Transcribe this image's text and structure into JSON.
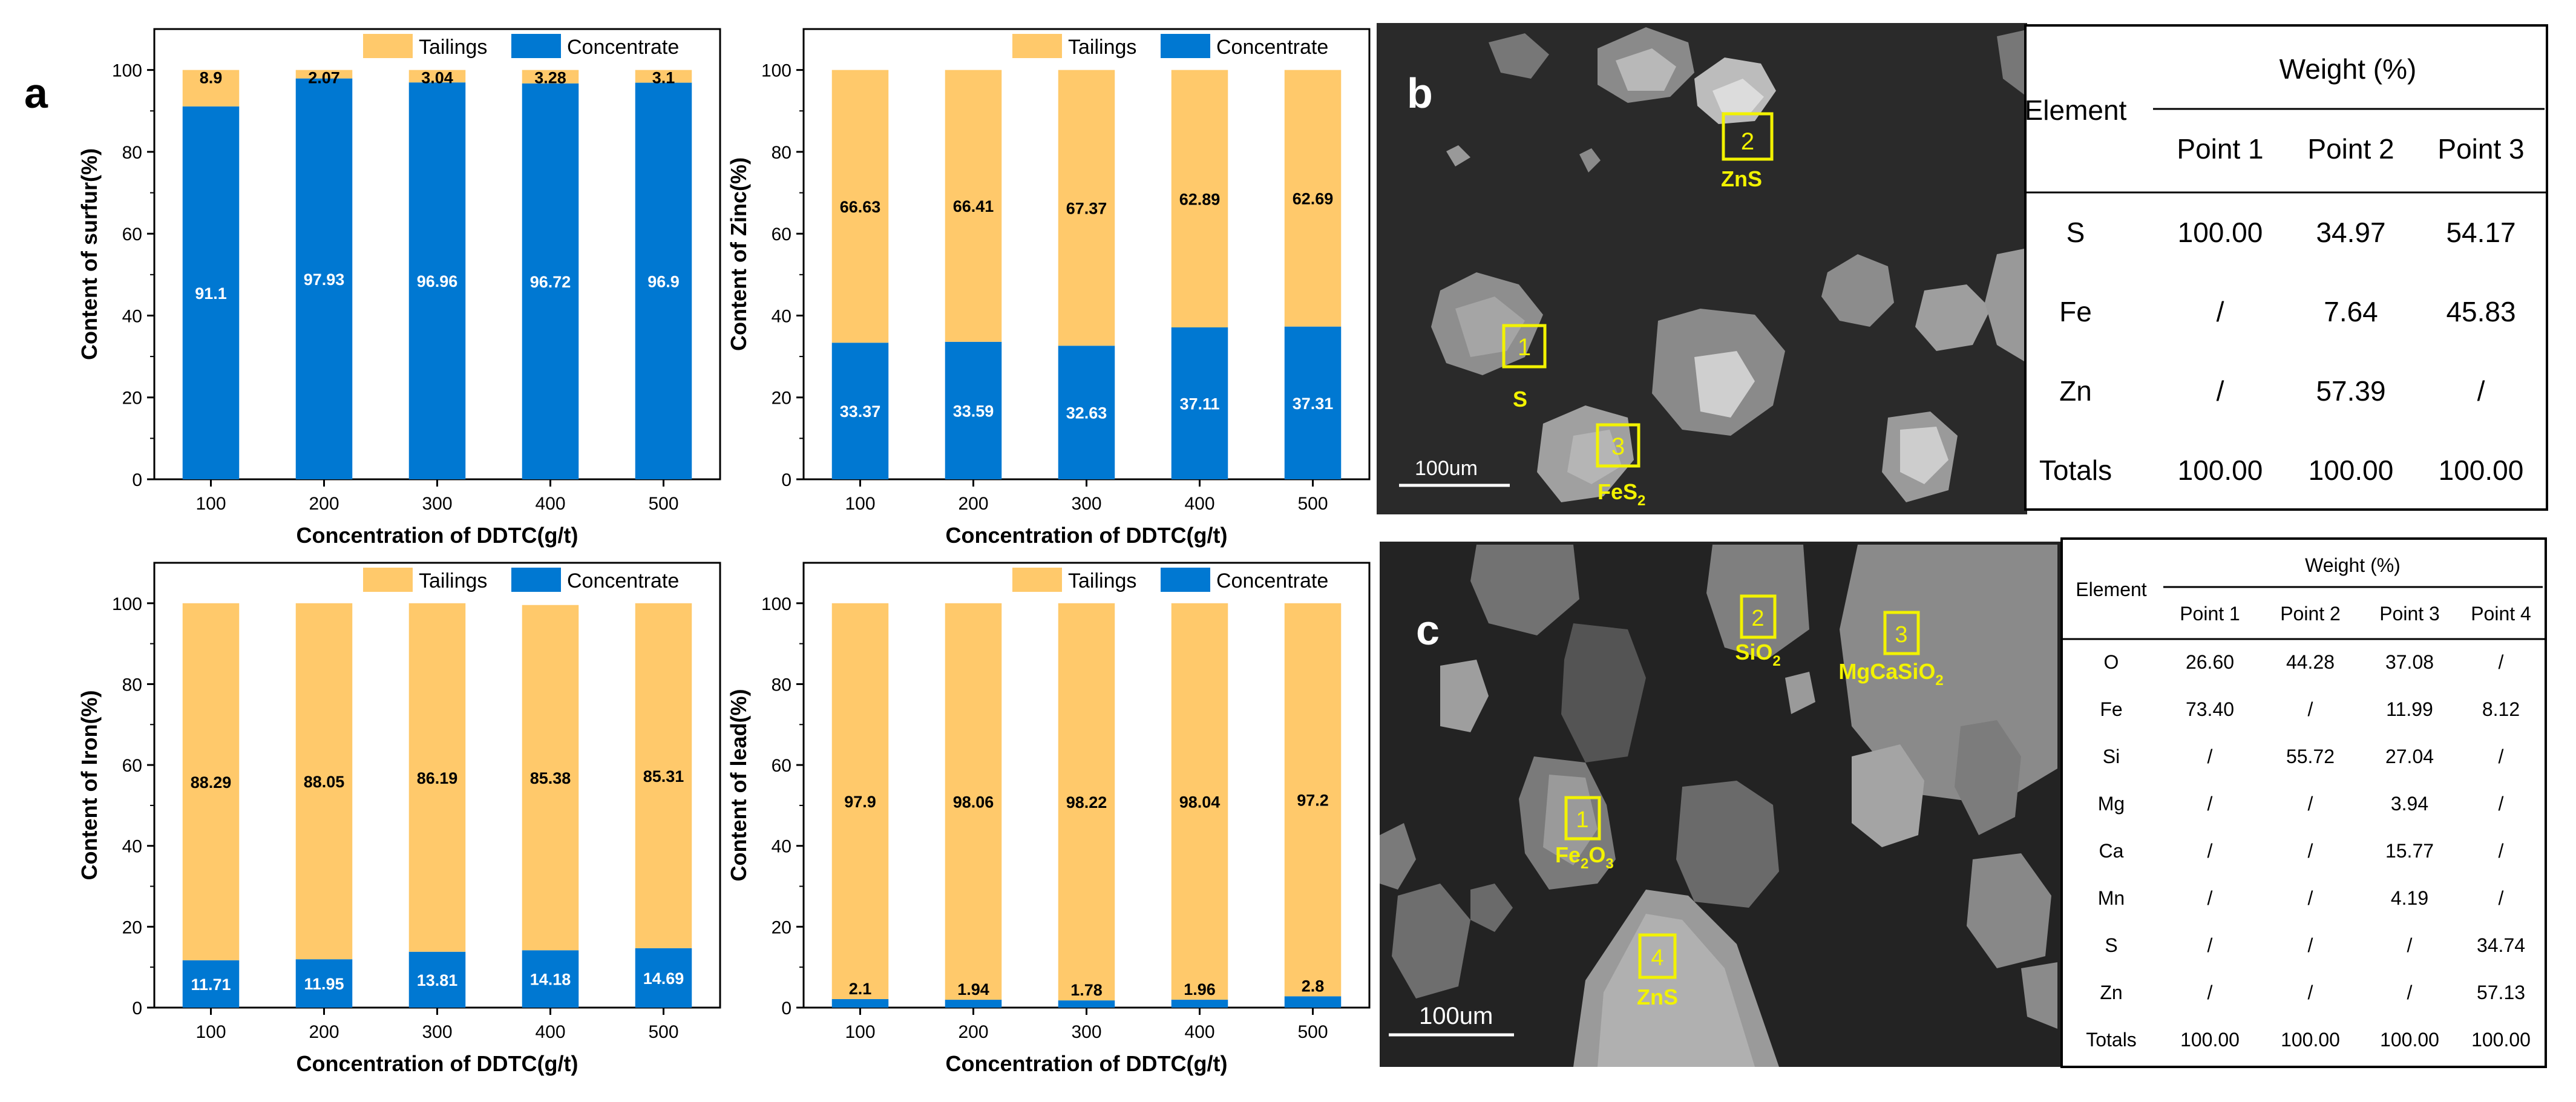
{
  "panel_labels": {
    "a": "a",
    "b": "b",
    "c": "c"
  },
  "colors": {
    "tailings": "#FFC96B",
    "concentrate": "#0078D2",
    "sem_bg": "#232323",
    "marker": "#F2F200"
  },
  "legend": {
    "tailings": "Tailings",
    "concentrate": "Concentrate"
  },
  "chart_data": [
    {
      "type": "bar",
      "stacked": true,
      "categories": [
        "100",
        "200",
        "300",
        "400",
        "500"
      ],
      "xlabel": "Concentration of DDTC(g/t)",
      "ylabel": "Content of surfur(%)",
      "ylim": [
        0,
        110
      ],
      "yticks": [
        "0",
        "20",
        "40",
        "60",
        "80",
        "100"
      ],
      "series": [
        {
          "name": "Concentrate",
          "values": [
            91.1,
            97.93,
            96.96,
            96.72,
            96.9
          ],
          "labels": [
            "91.1",
            "97.93",
            "96.96",
            "96.72",
            "96.9"
          ]
        },
        {
          "name": "Tailings",
          "values": [
            8.9,
            2.07,
            3.04,
            3.28,
            3.1
          ],
          "labels": [
            "8.9",
            "2.07",
            "3.04",
            "3.28",
            "3.1"
          ]
        }
      ]
    },
    {
      "type": "bar",
      "stacked": true,
      "categories": [
        "100",
        "200",
        "300",
        "400",
        "500"
      ],
      "xlabel": "Concentration of DDTC(g/t)",
      "ylabel": "Content of Zinc(%)",
      "ylim": [
        0,
        110
      ],
      "yticks": [
        "0",
        "20",
        "40",
        "60",
        "80",
        "100"
      ],
      "series": [
        {
          "name": "Concentrate",
          "values": [
            33.37,
            33.59,
            32.63,
            37.11,
            37.31
          ],
          "labels": [
            "33.37",
            "33.59",
            "32.63",
            "37.11",
            "37.31"
          ]
        },
        {
          "name": "Tailings",
          "values": [
            66.63,
            66.41,
            67.37,
            62.89,
            62.69
          ],
          "labels": [
            "66.63",
            "66.41",
            "67.37",
            "62.89",
            "62.69"
          ]
        }
      ]
    },
    {
      "type": "bar",
      "stacked": true,
      "categories": [
        "100",
        "200",
        "300",
        "400",
        "500"
      ],
      "xlabel": "Concentration of DDTC(g/t)",
      "ylabel": "Content of Iron(%)",
      "ylim": [
        0,
        110
      ],
      "yticks": [
        "0",
        "20",
        "40",
        "60",
        "80",
        "100"
      ],
      "series": [
        {
          "name": "Concentrate",
          "values": [
            11.71,
            11.95,
            13.81,
            14.18,
            14.69
          ],
          "labels": [
            "11.71",
            "11.95",
            "13.81",
            "14.18",
            "14.69"
          ]
        },
        {
          "name": "Tailings",
          "values": [
            88.29,
            88.05,
            86.19,
            85.38,
            85.31
          ],
          "labels": [
            "88.29",
            "88.05",
            "86.19",
            "85.38",
            "85.31"
          ]
        }
      ]
    },
    {
      "type": "bar",
      "stacked": true,
      "categories": [
        "100",
        "200",
        "300",
        "400",
        "500"
      ],
      "xlabel": "Concentration of DDTC(g/t)",
      "ylabel": "Content of lead(%)",
      "ylim": [
        0,
        110
      ],
      "yticks": [
        "0",
        "20",
        "40",
        "60",
        "80",
        "100"
      ],
      "series": [
        {
          "name": "Concentrate",
          "values": [
            2.1,
            1.94,
            1.78,
            1.96,
            2.8
          ],
          "labels": [
            "2.1",
            "1.94",
            "1.78",
            "1.96",
            "2.8"
          ]
        },
        {
          "name": "Tailings",
          "values": [
            97.9,
            98.06,
            98.22,
            98.04,
            97.2
          ],
          "labels": [
            "97.9",
            "98.06",
            "98.22",
            "98.04",
            "97.2"
          ]
        }
      ]
    }
  ],
  "sem_b": {
    "scale_bar": "100um",
    "points": [
      {
        "num": "1",
        "label": "S"
      },
      {
        "num": "2",
        "label": "ZnS"
      },
      {
        "num": "3",
        "label": "FeS",
        "sub": "2"
      }
    ]
  },
  "sem_c": {
    "scale_bar": "100um",
    "points": [
      {
        "num": "1",
        "label": "Fe",
        "sub": "2",
        "label2": "O",
        "sub2": "3"
      },
      {
        "num": "2",
        "label": "SiO",
        "sub": "2"
      },
      {
        "num": "3",
        "label": "MgCaSiO",
        "sub": "2"
      },
      {
        "num": "4",
        "label": "ZnS"
      }
    ]
  },
  "table_b": {
    "col0_header": "Element",
    "group_header": "Weight (%)",
    "columns": [
      "Point 1",
      "Point 2",
      "Point 3"
    ],
    "rows": [
      {
        "element": "S",
        "values": [
          "100.00",
          "34.97",
          "54.17"
        ]
      },
      {
        "element": "Fe",
        "values": [
          "/",
          "7.64",
          "45.83"
        ]
      },
      {
        "element": "Zn",
        "values": [
          "/",
          "57.39",
          "/"
        ]
      },
      {
        "element": "Totals",
        "values": [
          "100.00",
          "100.00",
          "100.00"
        ]
      }
    ]
  },
  "table_c": {
    "col0_header": "Element",
    "group_header": "Weight (%)",
    "columns": [
      "Point 1",
      "Point 2",
      "Point 3",
      "Point 4"
    ],
    "rows": [
      {
        "element": "O",
        "values": [
          "26.60",
          "44.28",
          "37.08",
          "/"
        ]
      },
      {
        "element": "Fe",
        "values": [
          "73.40",
          "/",
          "11.99",
          "8.12"
        ]
      },
      {
        "element": "Si",
        "values": [
          "/",
          "55.72",
          "27.04",
          "/"
        ]
      },
      {
        "element": "Mg",
        "values": [
          "/",
          "/",
          "3.94",
          "/"
        ]
      },
      {
        "element": "Ca",
        "values": [
          "/",
          "/",
          "15.77",
          "/"
        ]
      },
      {
        "element": "Mn",
        "values": [
          "/",
          "/",
          "4.19",
          "/"
        ]
      },
      {
        "element": "S",
        "values": [
          "/",
          "/",
          "/",
          "34.74"
        ]
      },
      {
        "element": "Zn",
        "values": [
          "/",
          "/",
          "/",
          "57.13"
        ]
      },
      {
        "element": "Totals",
        "values": [
          "100.00",
          "100.00",
          "100.00",
          "100.00"
        ]
      }
    ]
  }
}
